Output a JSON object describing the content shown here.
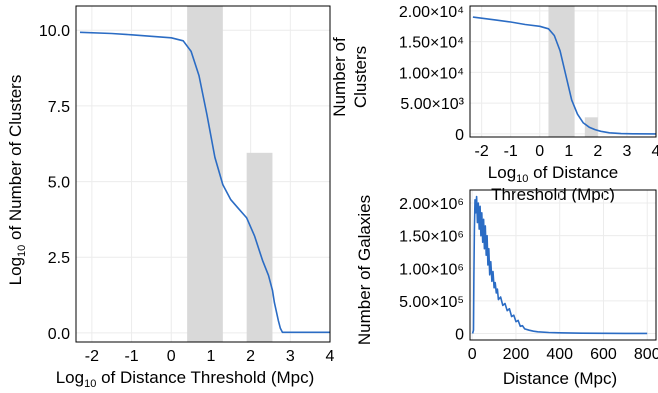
{
  "chart_data": [
    {
      "type": "line",
      "panel": "left",
      "xlabel": "Log10 of Distance Threshold (Mpc)",
      "ylabel": "Log10 of Number of Clusters",
      "xlim": [
        -2.4,
        4.0
      ],
      "ylim": [
        -0.3,
        10.8
      ],
      "xticks": [
        -2,
        -1,
        0,
        1,
        2,
        3,
        4
      ],
      "xtick_labels": [
        "-2",
        "-1",
        "0",
        "1",
        "2",
        "3",
        "4"
      ],
      "yticks": [
        0,
        2.5,
        5,
        7.5,
        10
      ],
      "ytick_labels": [
        "0.0",
        "2.5",
        "5.0",
        "7.5",
        "10.0"
      ],
      "grid": true,
      "shaded_bars": [
        {
          "x0": 0.4,
          "x1": 1.3,
          "height": 10.8
        },
        {
          "x0": 1.9,
          "x1": 2.55,
          "height": 5.95
        }
      ],
      "series": [
        {
          "color": "#2b6cc4",
          "x": [
            -2.3,
            -1.5,
            -1.0,
            -0.5,
            0.0,
            0.3,
            0.5,
            0.7,
            0.9,
            1.1,
            1.3,
            1.5,
            1.7,
            1.9,
            2.1,
            2.3,
            2.45,
            2.55,
            2.6,
            2.65,
            2.7,
            2.75,
            2.8,
            4.0
          ],
          "y": [
            9.93,
            9.89,
            9.85,
            9.8,
            9.75,
            9.65,
            9.3,
            8.5,
            7.2,
            5.8,
            4.9,
            4.4,
            4.1,
            3.8,
            3.2,
            2.4,
            1.9,
            1.4,
            1.0,
            0.7,
            0.4,
            0.15,
            0.02,
            0.02
          ]
        }
      ]
    },
    {
      "type": "line",
      "panel": "top-right",
      "xlabel": "Log10 of Distance Threshold (Mpc)",
      "ylabel": "Number of Clusters",
      "xlim": [
        -2.4,
        4.0
      ],
      "ylim": [
        -500,
        20800
      ],
      "xticks": [
        -2,
        -1,
        0,
        1,
        2,
        3,
        4
      ],
      "xtick_labels": [
        "-2",
        "-1",
        "0",
        "1",
        "2",
        "3",
        "4"
      ],
      "yticks": [
        0,
        5000,
        10000,
        15000,
        20000
      ],
      "ytick_labels": [
        "0",
        "5.00×10³",
        "1.00×10⁴",
        "1.50×10⁴",
        "2.00×10⁴"
      ],
      "grid": true,
      "shaded_bars": [
        {
          "x0": 0.3,
          "x1": 1.2,
          "height": 20800
        },
        {
          "x0": 1.55,
          "x1": 2.0,
          "height": 2700
        }
      ],
      "series": [
        {
          "color": "#2b6cc4",
          "x": [
            -2.3,
            -1.5,
            -1.0,
            -0.5,
            0.0,
            0.3,
            0.5,
            0.7,
            0.9,
            1.1,
            1.3,
            1.5,
            1.7,
            1.9,
            2.1,
            2.4,
            2.8,
            3.2,
            4.0
          ],
          "y": [
            19000,
            18500,
            18200,
            17800,
            17500,
            17100,
            16000,
            13500,
            9500,
            5500,
            3200,
            1800,
            1100,
            700,
            420,
            180,
            60,
            20,
            0
          ]
        }
      ]
    },
    {
      "type": "line",
      "panel": "bottom-right",
      "xlabel": "Distance (Mpc)",
      "ylabel": "Number of Galaxies",
      "xlim": [
        -10,
        840
      ],
      "ylim": [
        -100000,
        2200000
      ],
      "xticks": [
        0,
        200,
        400,
        600,
        800
      ],
      "xtick_labels": [
        "0",
        "200",
        "400",
        "600",
        "800"
      ],
      "yticks": [
        0,
        500000,
        1000000,
        1500000,
        2000000
      ],
      "ytick_labels": [
        "0",
        "5.00×10⁵",
        "1.00×10⁶",
        "1.50×10⁶",
        "2.00×10⁶"
      ],
      "grid": true,
      "series": [
        {
          "color": "#2b6cc4",
          "x": [
            2,
            6,
            8,
            10,
            13,
            16,
            20,
            24,
            28,
            32,
            36,
            40,
            44,
            48,
            52,
            56,
            60,
            64,
            68,
            72,
            76,
            80,
            85,
            90,
            95,
            100,
            105,
            110,
            115,
            120,
            130,
            140,
            150,
            160,
            170,
            180,
            190,
            200,
            210,
            220,
            230,
            240,
            260,
            280,
            300,
            350,
            400,
            500,
            600,
            700,
            800
          ],
          "y": [
            0,
            50000,
            900000,
            1600000,
            2050000,
            1850000,
            2100000,
            1700000,
            2000000,
            1600000,
            1950000,
            1500000,
            1850000,
            1400000,
            1750000,
            1300000,
            1650000,
            1200000,
            1500000,
            1050000,
            1300000,
            900000,
            1100000,
            800000,
            950000,
            700000,
            780000,
            620000,
            680000,
            520000,
            560000,
            430000,
            460000,
            350000,
            380000,
            260000,
            280000,
            180000,
            200000,
            110000,
            120000,
            70000,
            50000,
            35000,
            25000,
            15000,
            10000,
            5000,
            2000,
            1000,
            500
          ]
        }
      ]
    }
  ]
}
